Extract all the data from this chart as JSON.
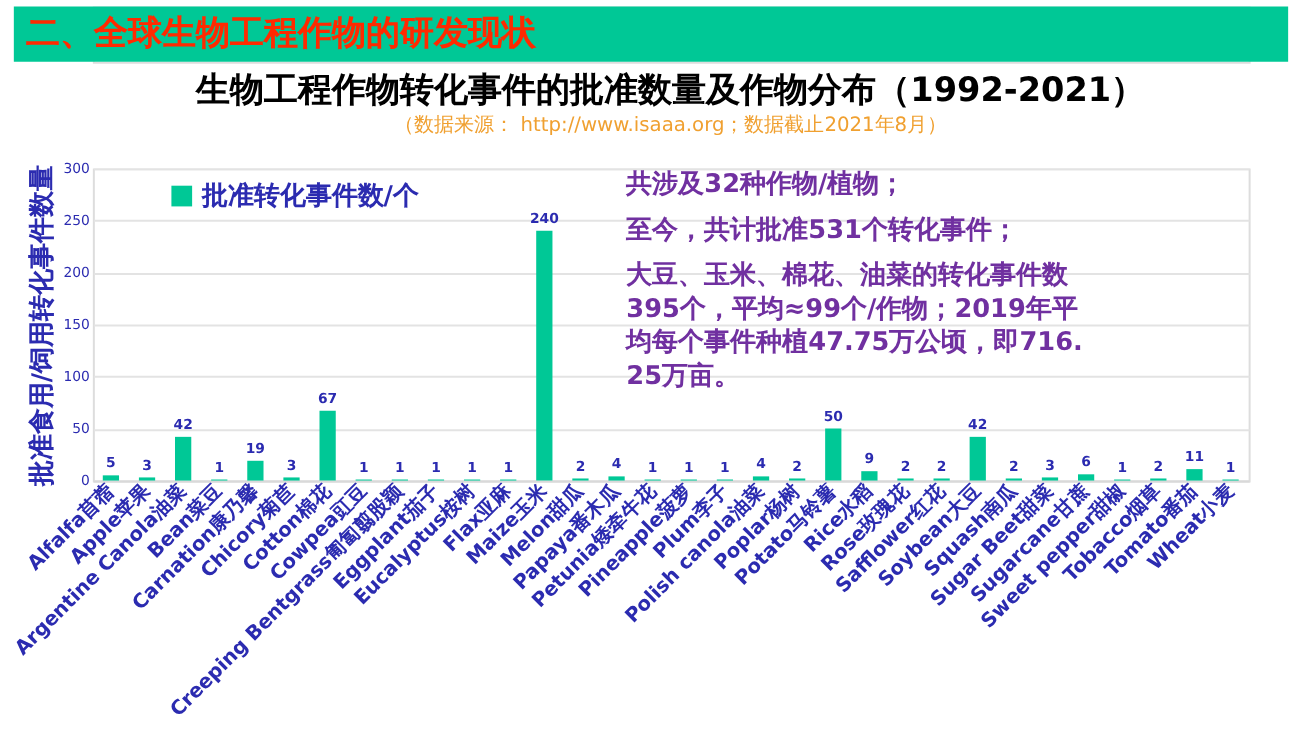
{
  "chart_data": {
    "type": "bar",
    "title": "生物工程作物转化事件的批准数量及作物分布（1992-2021）",
    "subtitle": "（数据来源： http://www.isaaa.org；数据截止2021年8月）",
    "ylabel": "批准食用/饲用转化事件数量",
    "categories": [
      "Alfalfa苜蓿",
      "Apple苹果",
      "Argentine Canola油菜",
      "Bean菜豆",
      "Carnation康乃馨",
      "Chicory菊苣",
      "Cotton棉花",
      "Cowpea豇豆",
      "Creeping Bentgrass匍匐翦股颖",
      "Eggplant茄子",
      "Eucalyptus桉树",
      "Flax亚麻",
      "Maize玉米",
      "Melon甜瓜",
      "Papaya番木瓜",
      "Petunia矮牵牛花",
      "Pineapple菠萝",
      "Plum李子",
      "Polish canola油菜",
      "Poplar杨树",
      "Potato马铃薯",
      "Rice水稻",
      "Rose玫瑰花",
      "Safflower红花",
      "Soybean大豆",
      "Squash南瓜",
      "Sugar Beet甜菜",
      "Sugarcane甘蔗",
      "Sweet pepper甜椒",
      "Tobacco烟草",
      "Tomato番茄",
      "Wheat小麦"
    ],
    "series": [
      {
        "name": "批准转化事件数/个",
        "color": "#00c896",
        "values": [
          5,
          3,
          42,
          1,
          19,
          3,
          67,
          1,
          1,
          1,
          1,
          1,
          240,
          2,
          4,
          1,
          1,
          1,
          4,
          2,
          50,
          9,
          2,
          2,
          42,
          2,
          3,
          6,
          1,
          2,
          11,
          1
        ]
      }
    ],
    "ylim": [
      0,
      300
    ],
    "yticks": [
      0,
      50,
      100,
      150,
      200,
      250,
      300
    ],
    "grid": "y",
    "legend": "top left",
    "data_labels": true,
    "annotations": [
      "二、全球生物工程作物的研发现状",
      "共涉及32种作物/植物；",
      "至今，共计批准531个转化事件；",
      "大豆、玉米、棉花、油菜的转化事件数395个，平均≈99个/作物；2019年平均每个事件种植47.75万公顷，即716.25万亩。"
    ]
  }
}
